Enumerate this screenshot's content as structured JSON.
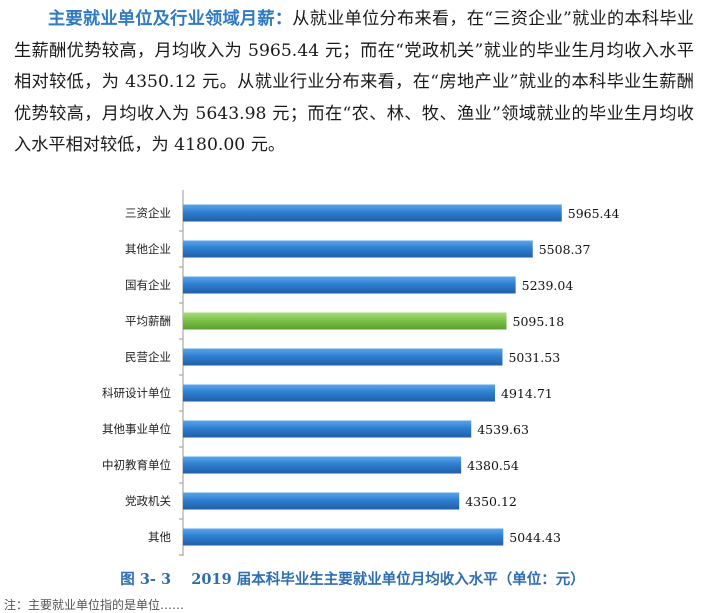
{
  "paragraph": {
    "lead": "主要就业单位及行业领域月薪：",
    "body": "从就业单位分布来看，在“三资企业”就业的本科毕业生薪酬优势较高，月均收入为 5965.44 元；而在“党政机关”就业的毕业生月均收入水平相对较低，为 4350.12 元。从就业行业分布来看，在“房地产业”就业的本科毕业生薪酬优势较高，月均收入为 5643.98 元；而在“农、林、牧、渔业”领域就业的毕业生月均收入水平相对较低，为 4180.00 元。"
  },
  "caption": {
    "figure_no": "图 3- 3",
    "text": "2019 届本科毕业生主要就业单位月均收入水平（单位：元）"
  },
  "note": "注：主要就业单位指的是单位……",
  "colors": {
    "bar": "#2f7fd0",
    "highlight": "#7dc24a",
    "axis": "#9a9a9a"
  },
  "chart_data": {
    "type": "bar",
    "orientation": "horizontal",
    "title": "",
    "xlabel": "",
    "ylabel": "",
    "xlim": [
      0,
      6300
    ],
    "grid": false,
    "highlight_category": "平均薪酬",
    "categories": [
      "三资企业",
      "其他企业",
      "国有企业",
      "平均薪酬",
      "民营企业",
      "科研设计单位",
      "其他事业单位",
      "中初教育单位",
      "党政机关",
      "其他"
    ],
    "values": [
      5965.44,
      5508.37,
      5239.04,
      5095.18,
      5031.53,
      4914.71,
      4539.63,
      4380.54,
      4350.12,
      5044.43
    ],
    "value_labels": [
      "5965.44",
      "5508.37",
      "5239.04",
      "5095.18",
      "5031.53",
      "4914.71",
      "4539.63",
      "4380.54",
      "4350.12",
      "5044.43"
    ]
  }
}
